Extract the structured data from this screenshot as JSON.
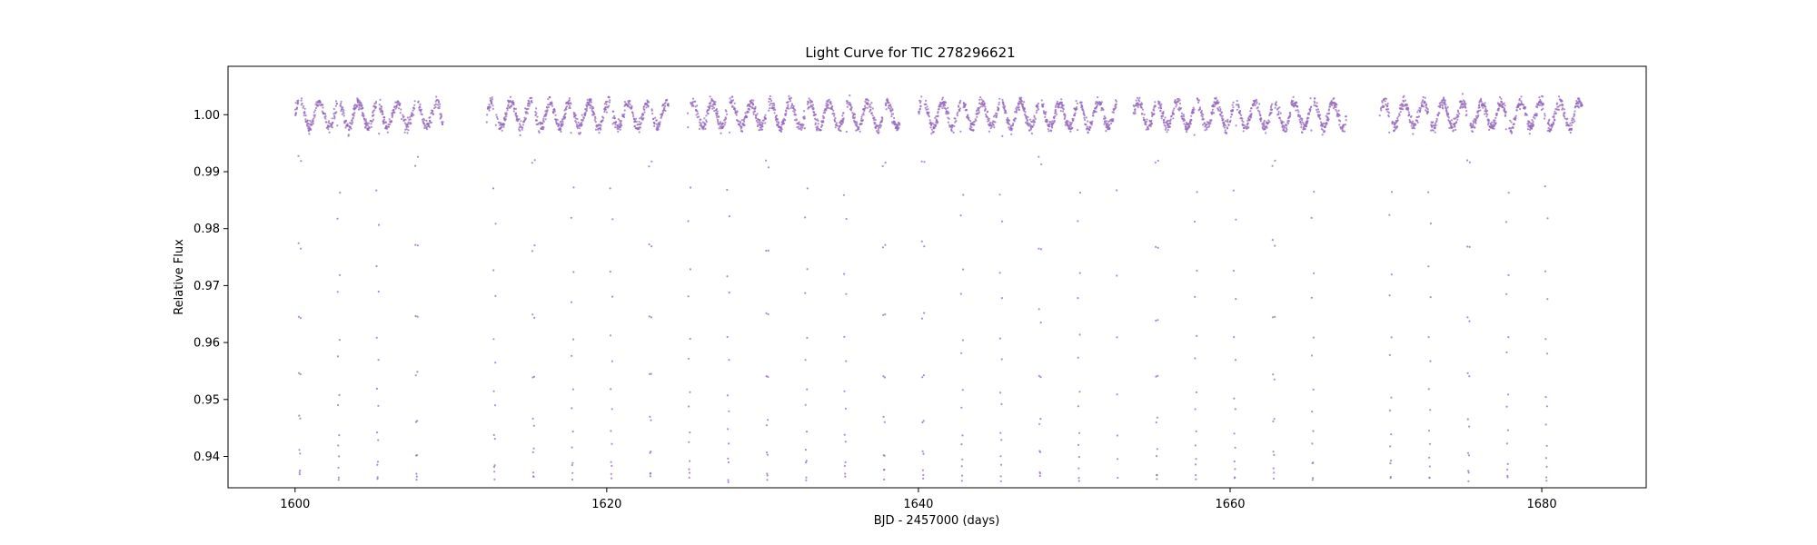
{
  "chart_data": {
    "type": "scatter",
    "title": "Light Curve for TIC 278296621",
    "xlabel": "BJD - 2457000 (days)",
    "ylabel": "Relative Flux",
    "xlim": [
      1595.7,
      1686.7
    ],
    "ylim": [
      0.9345,
      1.0085
    ],
    "x_ticks": [
      1600,
      1620,
      1640,
      1660,
      1680
    ],
    "x_tick_labels": [
      "1600",
      "1620",
      "1640",
      "1660",
      "1680"
    ],
    "y_ticks": [
      0.94,
      0.95,
      0.96,
      0.97,
      0.98,
      0.99,
      1.0
    ],
    "y_tick_labels": [
      "0.94",
      "0.95",
      "0.96",
      "0.97",
      "0.98",
      "0.99",
      "1.00"
    ],
    "grid": false,
    "legend": null,
    "point_color": "#9467bd",
    "series": [
      {
        "baseline": 1.0,
        "segments": [
          [
            1600.0,
            1609.5
          ],
          [
            1612.3,
            1624.0
          ],
          [
            1625.2,
            1638.8
          ],
          [
            1640.0,
            1652.8
          ],
          [
            1653.8,
            1667.5
          ],
          [
            1669.6,
            1682.6
          ]
        ],
        "dip_depth_min": 0.936,
        "dip_period": 2.5,
        "dip_times": [
          1600.3,
          1602.8,
          1605.3,
          1607.8,
          1612.8,
          1615.3,
          1617.8,
          1620.3,
          1622.8,
          1625.3,
          1627.8,
          1630.3,
          1632.8,
          1635.3,
          1637.8,
          1640.3,
          1642.8,
          1645.3,
          1647.8,
          1650.3,
          1652.8,
          1655.3,
          1657.8,
          1660.3,
          1662.8,
          1665.3,
          1670.3,
          1672.8,
          1675.3,
          1677.8,
          1680.3
        ],
        "modulation_amplitude": 0.0022,
        "modulation_period": 1.25
      }
    ]
  }
}
